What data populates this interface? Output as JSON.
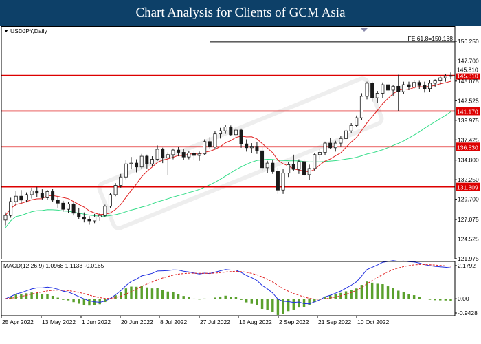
{
  "banner": {
    "title": "Chart Analysis for Clients of GCM Asia"
  },
  "colors": {
    "bull": "#1a1a1a",
    "bear": "#1a1a1a",
    "hline": "#dd0000",
    "ma_fast": "#e02020",
    "ma_slow": "#33dd88",
    "macd_line": "#1f2fe0",
    "signal": "#e02020",
    "hist": "#5aa02c"
  },
  "chart_data": [
    {
      "type": "candlestick",
      "title": "USDJPY,Daily",
      "ylim": [
        121.975,
        151.5
      ],
      "y_ticks": [
        "150.250",
        "147.700",
        "145.075",
        "142.525",
        "139.975",
        "137.425",
        "134.800",
        "132.250",
        "129.700",
        "127.075",
        "124.525",
        "121.975"
      ],
      "x_ticks": [
        "25 Apr 2022",
        "13 May 2022",
        "1 Jun 2022",
        "20 Jun 2022",
        "8 Jul 2022",
        "27 Jul 2022",
        "15 Aug 2022",
        "2 Sep 2022",
        "21 Sep 2022",
        "10 Oct 2022"
      ],
      "horizontal_levels": [
        {
          "value": 145.81,
          "label": "145.810"
        },
        {
          "value": 141.17,
          "label": "141.170"
        },
        {
          "value": 136.53,
          "label": "136.530"
        },
        {
          "value": 131.309,
          "label": "131.309"
        }
      ],
      "fib_annotation": {
        "label": "FE 61.8=150.168",
        "value": 150.168
      },
      "current_price": "145.810",
      "candles": [
        [
          127.0,
          128.0,
          126.3,
          127.6
        ],
        [
          127.6,
          129.9,
          127.3,
          129.4
        ],
        [
          129.4,
          130.8,
          128.8,
          130.1
        ],
        [
          130.1,
          130.9,
          129.2,
          129.6
        ],
        [
          129.6,
          130.6,
          129.3,
          130.3
        ],
        [
          130.3,
          131.2,
          129.8,
          130.8
        ],
        [
          130.8,
          131.3,
          130.0,
          130.5
        ],
        [
          130.5,
          131.0,
          129.6,
          129.9
        ],
        [
          129.9,
          130.9,
          129.6,
          130.7
        ],
        [
          130.7,
          131.1,
          129.4,
          129.6
        ],
        [
          129.6,
          130.0,
          128.6,
          129.2
        ],
        [
          129.2,
          129.5,
          128.1,
          128.4
        ],
        [
          128.4,
          129.4,
          127.9,
          129.1
        ],
        [
          129.1,
          129.3,
          127.6,
          127.9
        ],
        [
          127.9,
          128.6,
          127.1,
          127.4
        ],
        [
          127.4,
          128.0,
          126.7,
          127.1
        ],
        [
          127.1,
          127.5,
          126.4,
          126.9
        ],
        [
          126.9,
          127.8,
          126.6,
          127.4
        ],
        [
          127.4,
          127.9,
          126.9,
          127.6
        ],
        [
          127.6,
          129.0,
          127.4,
          128.8
        ],
        [
          128.8,
          130.5,
          128.6,
          130.3
        ],
        [
          130.3,
          131.8,
          130.1,
          131.5
        ],
        [
          131.5,
          133.0,
          131.2,
          132.6
        ],
        [
          132.6,
          134.8,
          132.3,
          134.3
        ],
        [
          134.3,
          135.2,
          133.6,
          134.4
        ],
        [
          134.4,
          134.9,
          133.2,
          133.9
        ],
        [
          133.9,
          135.6,
          133.7,
          135.3
        ],
        [
          135.3,
          135.5,
          133.7,
          134.3
        ],
        [
          134.3,
          135.3,
          134.0,
          134.9
        ],
        [
          134.9,
          136.7,
          134.7,
          136.2
        ],
        [
          136.2,
          136.4,
          134.4,
          135.1
        ],
        [
          135.1,
          135.8,
          132.8,
          135.5
        ],
        [
          135.5,
          136.3,
          134.9,
          136.1
        ],
        [
          136.1,
          136.5,
          135.3,
          135.8
        ],
        [
          135.8,
          136.2,
          134.8,
          135.2
        ],
        [
          135.2,
          136.0,
          134.9,
          135.7
        ],
        [
          135.7,
          136.0,
          134.8,
          135.4
        ],
        [
          135.4,
          135.9,
          134.7,
          135.6
        ],
        [
          135.6,
          137.5,
          135.4,
          137.2
        ],
        [
          137.2,
          137.8,
          136.2,
          136.5
        ],
        [
          136.5,
          138.6,
          136.3,
          138.2
        ],
        [
          138.2,
          139.0,
          137.6,
          138.6
        ],
        [
          138.6,
          139.4,
          138.2,
          139.1
        ],
        [
          139.1,
          139.3,
          137.9,
          138.1
        ],
        [
          138.1,
          139.0,
          137.6,
          138.7
        ],
        [
          138.7,
          138.9,
          136.4,
          136.9
        ],
        [
          136.9,
          137.5,
          135.9,
          136.4
        ],
        [
          136.4,
          137.0,
          135.7,
          136.6
        ],
        [
          136.6,
          137.1,
          135.6,
          136.0
        ],
        [
          136.0,
          136.5,
          133.4,
          133.8
        ],
        [
          133.8,
          134.7,
          133.1,
          134.4
        ],
        [
          134.4,
          134.8,
          133.0,
          133.3
        ],
        [
          133.3,
          133.8,
          130.4,
          130.9
        ],
        [
          130.9,
          133.6,
          130.4,
          133.1
        ],
        [
          133.1,
          134.5,
          132.6,
          134.2
        ],
        [
          134.2,
          135.5,
          133.4,
          133.6
        ],
        [
          133.6,
          134.9,
          133.0,
          134.6
        ],
        [
          134.6,
          134.9,
          132.7,
          132.9
        ],
        [
          132.9,
          134.2,
          132.2,
          133.7
        ],
        [
          133.7,
          135.7,
          133.4,
          135.5
        ],
        [
          135.5,
          136.3,
          134.9,
          135.8
        ],
        [
          135.8,
          137.2,
          135.4,
          137.0
        ],
        [
          137.0,
          137.7,
          136.2,
          136.4
        ],
        [
          136.4,
          137.3,
          135.9,
          137.0
        ],
        [
          137.0,
          137.9,
          136.6,
          137.6
        ],
        [
          137.6,
          138.9,
          137.4,
          138.6
        ],
        [
          138.6,
          139.6,
          138.3,
          139.3
        ],
        [
          139.3,
          140.6,
          139.1,
          140.3
        ],
        [
          140.3,
          143.5,
          140.0,
          143.1
        ],
        [
          143.1,
          145.0,
          142.7,
          144.8
        ],
        [
          144.8,
          145.0,
          142.4,
          142.9
        ],
        [
          142.9,
          143.8,
          142.2,
          143.5
        ],
        [
          143.5,
          144.9,
          142.9,
          144.6
        ],
        [
          144.6,
          145.0,
          143.5,
          143.9
        ],
        [
          143.9,
          144.6,
          143.1,
          144.4
        ],
        [
          144.4,
          145.9,
          141.2,
          143.7
        ],
        [
          143.7,
          145.0,
          143.4,
          144.6
        ],
        [
          144.6,
          145.0,
          143.9,
          144.3
        ],
        [
          144.3,
          145.2,
          144.0,
          144.9
        ],
        [
          144.9,
          145.1,
          144.0,
          144.5
        ],
        [
          144.5,
          145.0,
          143.6,
          144.1
        ],
        [
          144.1,
          145.2,
          143.7,
          144.8
        ],
        [
          144.8,
          145.3,
          144.3,
          145.1
        ],
        [
          145.1,
          145.7,
          144.6,
          145.5
        ],
        [
          145.5,
          146.0,
          145.0,
          145.7
        ],
        [
          145.7,
          146.2,
          145.3,
          145.8
        ]
      ]
    },
    {
      "type": "macd",
      "title": "MACD(12,26,9) 1.0968 1.1133 -0.0165",
      "params": "12,26,9",
      "values": [
        "1.0968",
        "1.1133",
        "-0.0165"
      ],
      "y_ticks": [
        "2.1792",
        "0.00",
        "-0.9428"
      ],
      "ylim": [
        -0.9428,
        2.1792
      ]
    }
  ]
}
